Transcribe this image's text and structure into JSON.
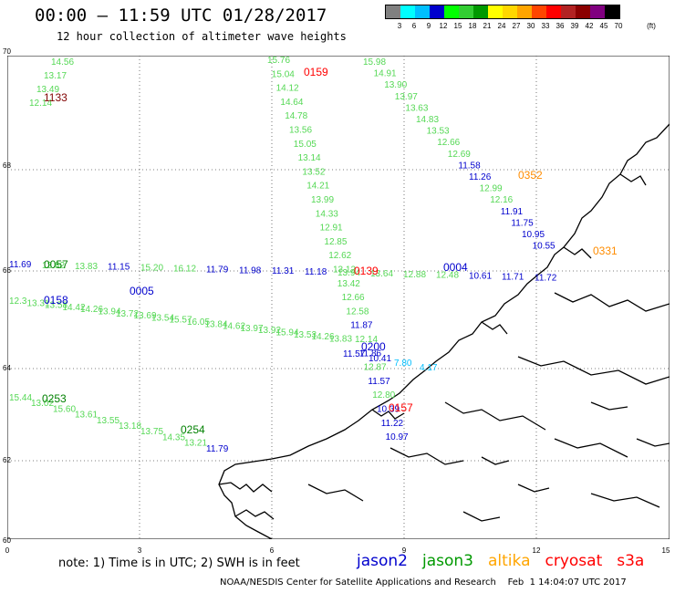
{
  "header": {
    "title": "00:00 – 11:59 UTC 01/28/2017",
    "subtitle": "12 hour collection of altimeter wave heights"
  },
  "scale": {
    "unit_label": "(ft)",
    "ticks": [
      "3",
      "6",
      "9",
      "12",
      "15",
      "18",
      "21",
      "24",
      "27",
      "30",
      "33",
      "36",
      "39",
      "42",
      "45",
      "70"
    ],
    "colors": [
      "#808080",
      "#00ffff",
      "#00bfff",
      "#0000cd",
      "#00ff00",
      "#32cd32",
      "#009900",
      "#ffff00",
      "#ffd700",
      "#ffa500",
      "#ff4500",
      "#ff0000",
      "#b22222",
      "#8b0000",
      "#800080",
      "#000000"
    ]
  },
  "axes": {
    "y_ticks": [
      "70",
      "68",
      "66",
      "64",
      "62",
      "60"
    ],
    "x_ticks": [
      "0",
      "3",
      "6",
      "9",
      "12",
      "15"
    ]
  },
  "tracks": {
    "t1133": {
      "time": "1133",
      "color": "#800000",
      "values": [
        "14.56",
        "13.17",
        "13.49",
        "12.14"
      ]
    },
    "t0159a": {
      "time": "0159",
      "color": "#ff0000",
      "values": [
        "15.76",
        "15.04",
        "14.12",
        "14.64",
        "14.78",
        "13.56",
        "15.05",
        "13.14",
        "13.52",
        "14.21",
        "13.99",
        "14.33",
        "12.91",
        "12.85",
        "12.62",
        "13.12",
        "13.42",
        "12.66",
        "12.58",
        "11.87",
        "12.14",
        "11.86",
        "12.87",
        "11.57",
        "12.80",
        "10.39",
        "11.22",
        "10.97"
      ]
    },
    "t0139": {
      "time": "0139",
      "color": "#ff0000",
      "values": []
    },
    "tNE": {
      "time": "0352",
      "color": "#ff8c00",
      "values": [
        "15.98",
        "14.91",
        "13.90",
        "13.97",
        "13.63",
        "14.83",
        "13.53",
        "12.66",
        "12.69",
        "11.58",
        "11.26",
        "12.99",
        "12.16",
        "11.91",
        "11.75",
        "10.95",
        "10.55"
      ]
    },
    "t0331": {
      "time": "0331",
      "color": "#ff8c00",
      "values": []
    },
    "tH": {
      "time": "0057",
      "color": "#008000",
      "values": [
        "11.69",
        "13.82",
        "13.83",
        "11.15",
        "15.20",
        "16.12",
        "11.79",
        "11.98",
        "11.31",
        "11.18",
        "13.94",
        "13.64",
        "12.88",
        "12.48",
        "10.61",
        "11.71",
        "11.72"
      ]
    },
    "t0004": {
      "time": "0004",
      "color": "#0000cd",
      "values": []
    },
    "tD": {
      "time": "0005",
      "color": "#0000cd",
      "values": [
        "12.3",
        "13.31",
        "13.58",
        "14.42",
        "14.26",
        "13.94",
        "13.72",
        "13.69",
        "13.54",
        "15.57",
        "16.05",
        "13.84",
        "14.62",
        "13.97",
        "13.92",
        "15.94",
        "13.53",
        "14.26",
        "13.83"
      ]
    },
    "t0158": {
      "time": "0158",
      "color": "#0000cd",
      "values": []
    },
    "t0200": {
      "time": "0200",
      "color": "#0000cd",
      "values": [
        "11.57",
        "10.41",
        "7.80",
        "4.17"
      ]
    },
    "t0157": {
      "time": "0157",
      "color": "#ff0000",
      "values": []
    },
    "t0253": {
      "time": "0253",
      "color": "#008000",
      "values": [
        "15.44",
        "13.02",
        "15.60",
        "13.61",
        "13.55",
        "13.18",
        "13.75",
        "14.35",
        "13.21",
        "11.79"
      ]
    },
    "t0254": {
      "time": "0254",
      "color": "#008000",
      "values": []
    }
  },
  "footer": {
    "note": "note: 1) Time is in UTC; 2) SWH is in feet",
    "satellites": [
      {
        "name": "jason2",
        "color": "#0000cd"
      },
      {
        "name": "jason3",
        "color": "#009900"
      },
      {
        "name": "altika",
        "color": "#ffa500"
      },
      {
        "name": "cryosat",
        "color": "#ff0000"
      },
      {
        "name": "s3a",
        "color": "#ff0000"
      }
    ],
    "credit": "NOAA/NESDIS Center for Satellite Applications and Research    Feb  1 14:04:07 UTC 2017"
  }
}
